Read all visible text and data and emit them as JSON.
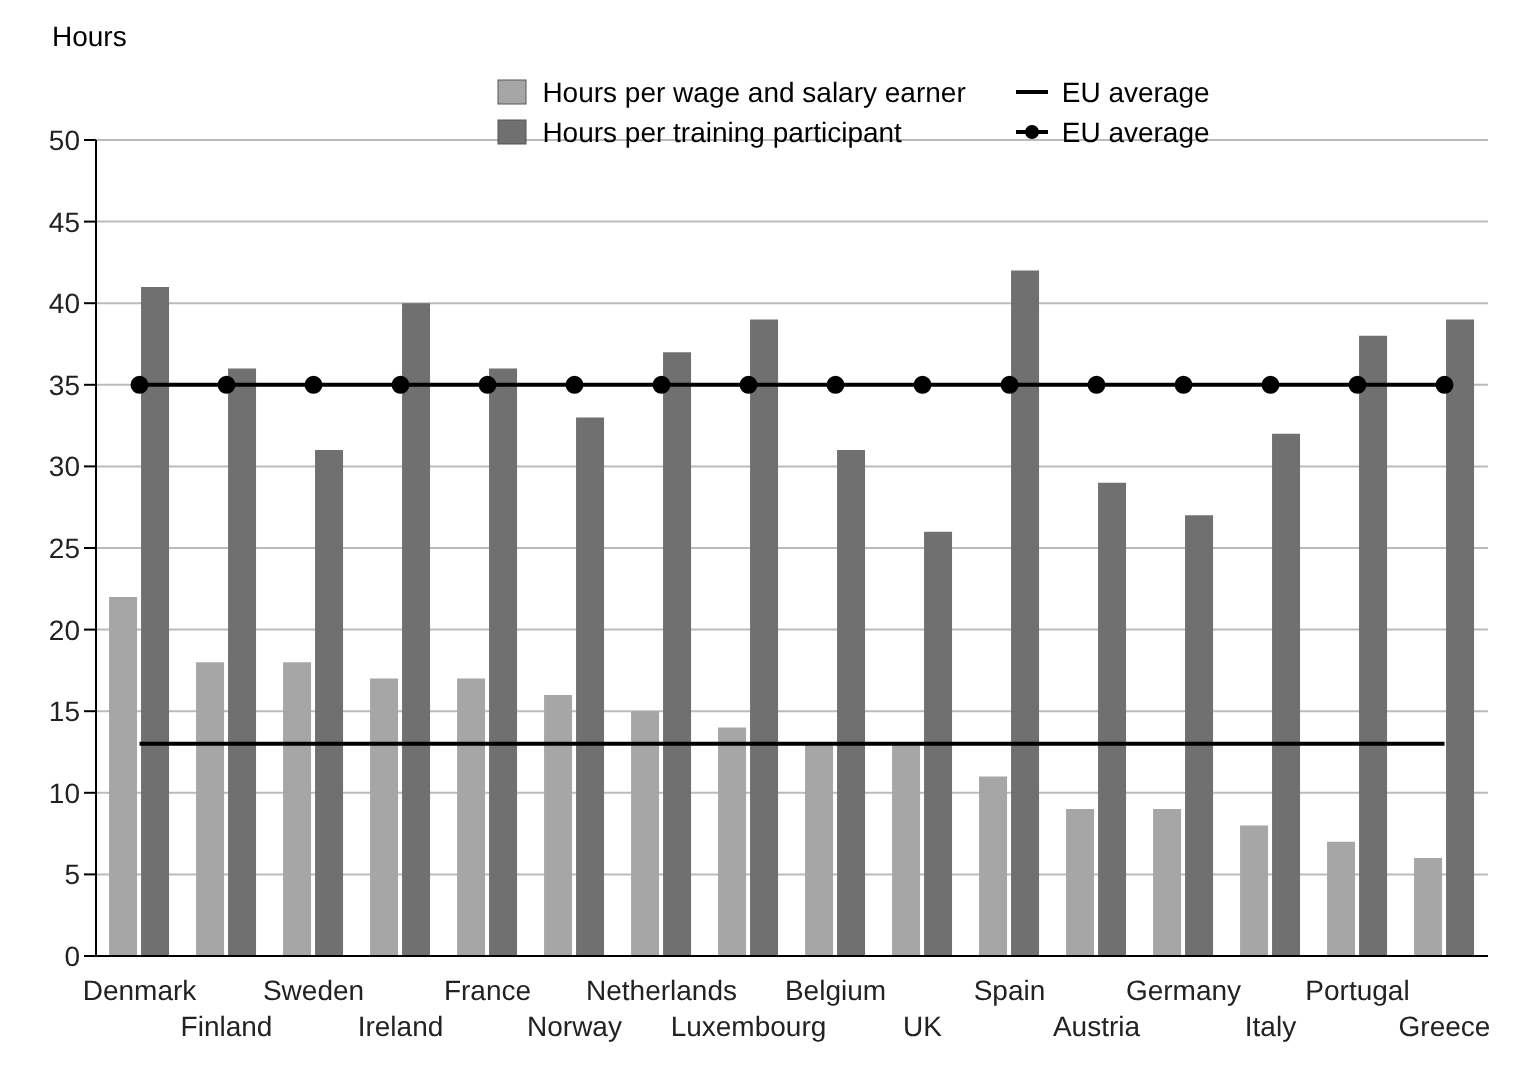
{
  "chart_data": {
    "type": "bar",
    "ylabel": "Hours",
    "categories": [
      "Denmark",
      "Finland",
      "Sweden",
      "Ireland",
      "France",
      "Norway",
      "Netherlands",
      "Luxembourg",
      "Belgium",
      "UK",
      "Spain",
      "Austria",
      "Germany",
      "Italy",
      "Portugal",
      "Greece"
    ],
    "series": [
      {
        "name": "Hours per wage and salary earner",
        "color": "#a6a6a6",
        "values": [
          22,
          18,
          18,
          17,
          17,
          16,
          15,
          14,
          13,
          13,
          11,
          9,
          9,
          8,
          7,
          6
        ]
      },
      {
        "name": "Hours per training participant",
        "color": "#707070",
        "values": [
          41,
          36,
          31,
          40,
          36,
          33,
          37,
          39,
          31,
          26,
          42,
          29,
          27,
          32,
          38,
          39
        ]
      },
      {
        "name": "EU average",
        "type": "line",
        "color": "#000000",
        "marker": "none",
        "values": [
          13,
          13,
          13,
          13,
          13,
          13,
          13,
          13,
          13,
          13,
          13,
          13,
          13,
          13,
          13,
          13
        ]
      },
      {
        "name": "EU average",
        "type": "line",
        "color": "#000000",
        "marker": "circle",
        "values": [
          35,
          35,
          35,
          35,
          35,
          35,
          35,
          35,
          35,
          35,
          35,
          35,
          35,
          35,
          35,
          35
        ]
      }
    ],
    "ylim": [
      0,
      50
    ],
    "yticks": [
      0,
      5,
      10,
      15,
      20,
      25,
      30,
      35,
      40,
      45,
      50
    ],
    "grid": "y",
    "legend": "top"
  }
}
